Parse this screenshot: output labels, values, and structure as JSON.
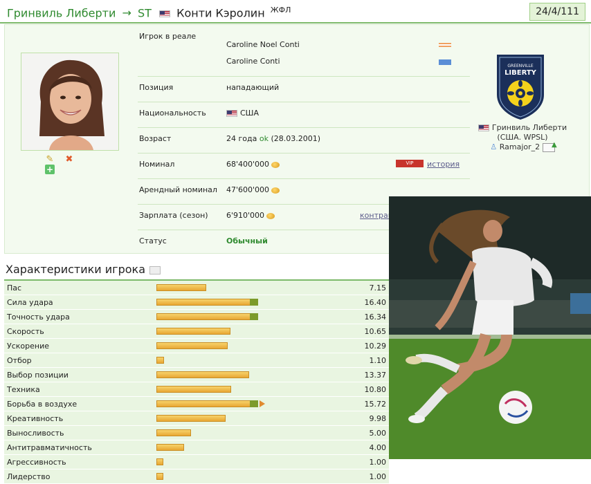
{
  "header": {
    "club": "Гринвиль Либерти",
    "arrow": "→",
    "position": "ST",
    "player_name": "Конти Кэролин",
    "league_tag": "ЖФЛ",
    "score": "24/4/111"
  },
  "info": {
    "real_label": "Игрок в реале",
    "real_name_1": "Caroline Noel Conti",
    "real_name_2": "Caroline Conti",
    "position_label": "Позиция",
    "position_value": "нападающий",
    "nationality_label": "Национальность",
    "nationality_value": "США",
    "age_label": "Возраст",
    "age_value": "24 года",
    "age_ok": "ok",
    "age_date": "(28.03.2001)",
    "nominal_label": "Номинал",
    "nominal_value": "68'400'000",
    "vip_label": "VIP",
    "history_link": "история",
    "rent_label": "Арендный номинал",
    "rent_value": "47'600'000",
    "salary_label": "Зарплата (сезон)",
    "salary_value": "6'910'000",
    "contract_link": "контракт",
    "status_label": "Статус",
    "status_value": "Обычный"
  },
  "club_side": {
    "logo_text_1": "GREENVILLE",
    "logo_text_2": "LIBERTY",
    "club_name": "Гринвиль Либерти",
    "league": "(США. WPSL)",
    "manager": "Ramajor_2"
  },
  "colors": {
    "accent_green": "#2f8a2f",
    "bar_orange": "#e8a733",
    "bar_extra": "#7c9b2a",
    "logo_navy": "#1b2f5a",
    "logo_yellow": "#f3d21c"
  },
  "characteristics": {
    "title": "Характеристики игрока",
    "items": [
      {
        "label": "Пас",
        "value": "7.15",
        "fill": 0.447,
        "extra": 0,
        "arrow": false
      },
      {
        "label": "Сила удара",
        "value": "16.40",
        "fill": 0.918,
        "extra": 0.075,
        "arrow": false
      },
      {
        "label": "Точность удара",
        "value": "16.34",
        "fill": 0.918,
        "extra": 0.075,
        "arrow": false
      },
      {
        "label": "Скорость",
        "value": "10.65",
        "fill": 0.666,
        "extra": 0,
        "arrow": false
      },
      {
        "label": "Ускорение",
        "value": "10.29",
        "fill": 0.643,
        "extra": 0,
        "arrow": false
      },
      {
        "label": "Отбор",
        "value": "1.10",
        "fill": 0.069,
        "extra": 0,
        "arrow": false
      },
      {
        "label": "Выбор позиции",
        "value": "13.37",
        "fill": 0.836,
        "extra": 0,
        "arrow": false
      },
      {
        "label": "Техника",
        "value": "10.80",
        "fill": 0.675,
        "extra": 0,
        "arrow": false
      },
      {
        "label": "Борьба в воздухе",
        "value": "15.72",
        "fill": 0.918,
        "extra": 0.075,
        "arrow": true
      },
      {
        "label": "Креативность",
        "value": "9.98",
        "fill": 0.624,
        "extra": 0,
        "arrow": false
      },
      {
        "label": "Выносливость",
        "value": "5.00",
        "fill": 0.313,
        "extra": 0,
        "arrow": false
      },
      {
        "label": "Антитравматичность",
        "value": "4.00",
        "fill": 0.25,
        "extra": 0,
        "arrow": false
      },
      {
        "label": "Агрессивность",
        "value": "1.00",
        "fill": 0.063,
        "extra": 0,
        "arrow": false
      },
      {
        "label": "Лидерство",
        "value": "1.00",
        "fill": 0.063,
        "extra": 0,
        "arrow": false
      }
    ]
  }
}
